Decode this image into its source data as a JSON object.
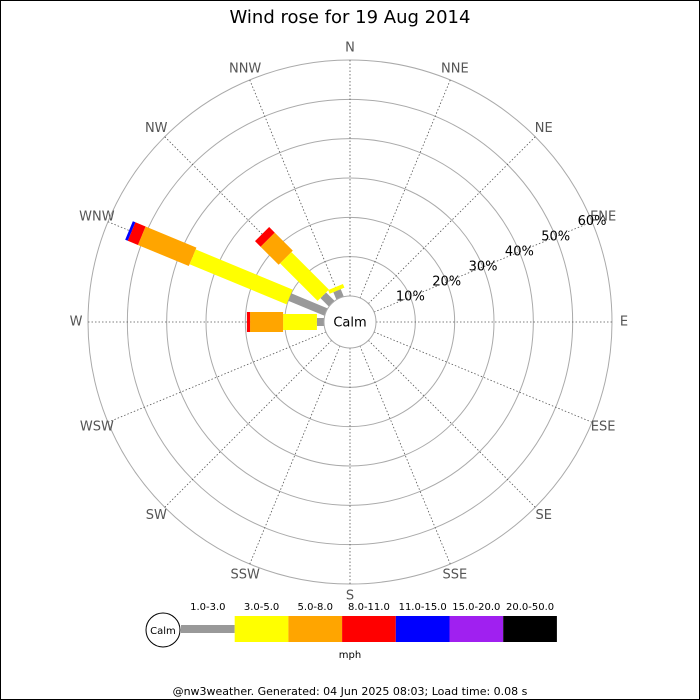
{
  "chart_data": {
    "type": "windrose",
    "title": "Wind rose for 19 Aug 2014",
    "calm_label": "Calm",
    "units_label": "mph",
    "footer": "@nw3weather. Generated: 04 Jun 2025 08:03; Load time: 0.08 s",
    "directions": [
      "N",
      "NNE",
      "NE",
      "ENE",
      "E",
      "ESE",
      "SE",
      "SSE",
      "S",
      "SSW",
      "SW",
      "WSW",
      "W",
      "WNW",
      "NW",
      "NNW"
    ],
    "rlim": [
      0,
      60
    ],
    "rticks": [
      {
        "value": 10,
        "label": "10%"
      },
      {
        "value": 20,
        "label": "20%"
      },
      {
        "value": 30,
        "label": "30%"
      },
      {
        "value": 40,
        "label": "40%"
      },
      {
        "value": 50,
        "label": "50%"
      },
      {
        "value": 60,
        "label": "60%"
      }
    ],
    "series": [
      {
        "name": "1.0-3.0",
        "color": "#999999",
        "values": [
          0,
          0,
          0,
          0,
          0,
          0,
          0,
          0,
          0,
          0,
          0,
          0,
          1.8,
          10,
          3,
          2
        ]
      },
      {
        "name": "3.0-5.0",
        "color": "#ffff00",
        "values": [
          0,
          0,
          0,
          0,
          0,
          0,
          0,
          0,
          0,
          0,
          0,
          0,
          8.6,
          26.7,
          13.5,
          1
        ]
      },
      {
        "name": "5.0-8.0",
        "color": "#ffa500",
        "values": [
          0,
          0,
          0,
          0,
          0,
          0,
          0,
          0,
          0,
          0,
          0,
          0,
          8.4,
          14,
          6.5,
          0
        ]
      },
      {
        "name": "8.0-11.0",
        "color": "#ff0000",
        "values": [
          0,
          0,
          0,
          0,
          0,
          0,
          0,
          0,
          0,
          0,
          0,
          0,
          0.8,
          2.8,
          2,
          0
        ]
      },
      {
        "name": "11.0-15.0",
        "color": "#0000ff",
        "values": [
          0,
          0,
          0,
          0,
          0,
          0,
          0,
          0,
          0,
          0,
          0,
          0,
          0,
          0.7,
          0,
          0
        ]
      },
      {
        "name": "15.0-20.0",
        "color": "#a020f0",
        "values": [
          0,
          0,
          0,
          0,
          0,
          0,
          0,
          0,
          0,
          0,
          0,
          0,
          0,
          0,
          0,
          0
        ]
      },
      {
        "name": "20.0-50.0",
        "color": "#000000",
        "values": [
          0,
          0,
          0,
          0,
          0,
          0,
          0,
          0,
          0,
          0,
          0,
          0,
          0,
          0,
          0,
          0
        ]
      }
    ]
  }
}
